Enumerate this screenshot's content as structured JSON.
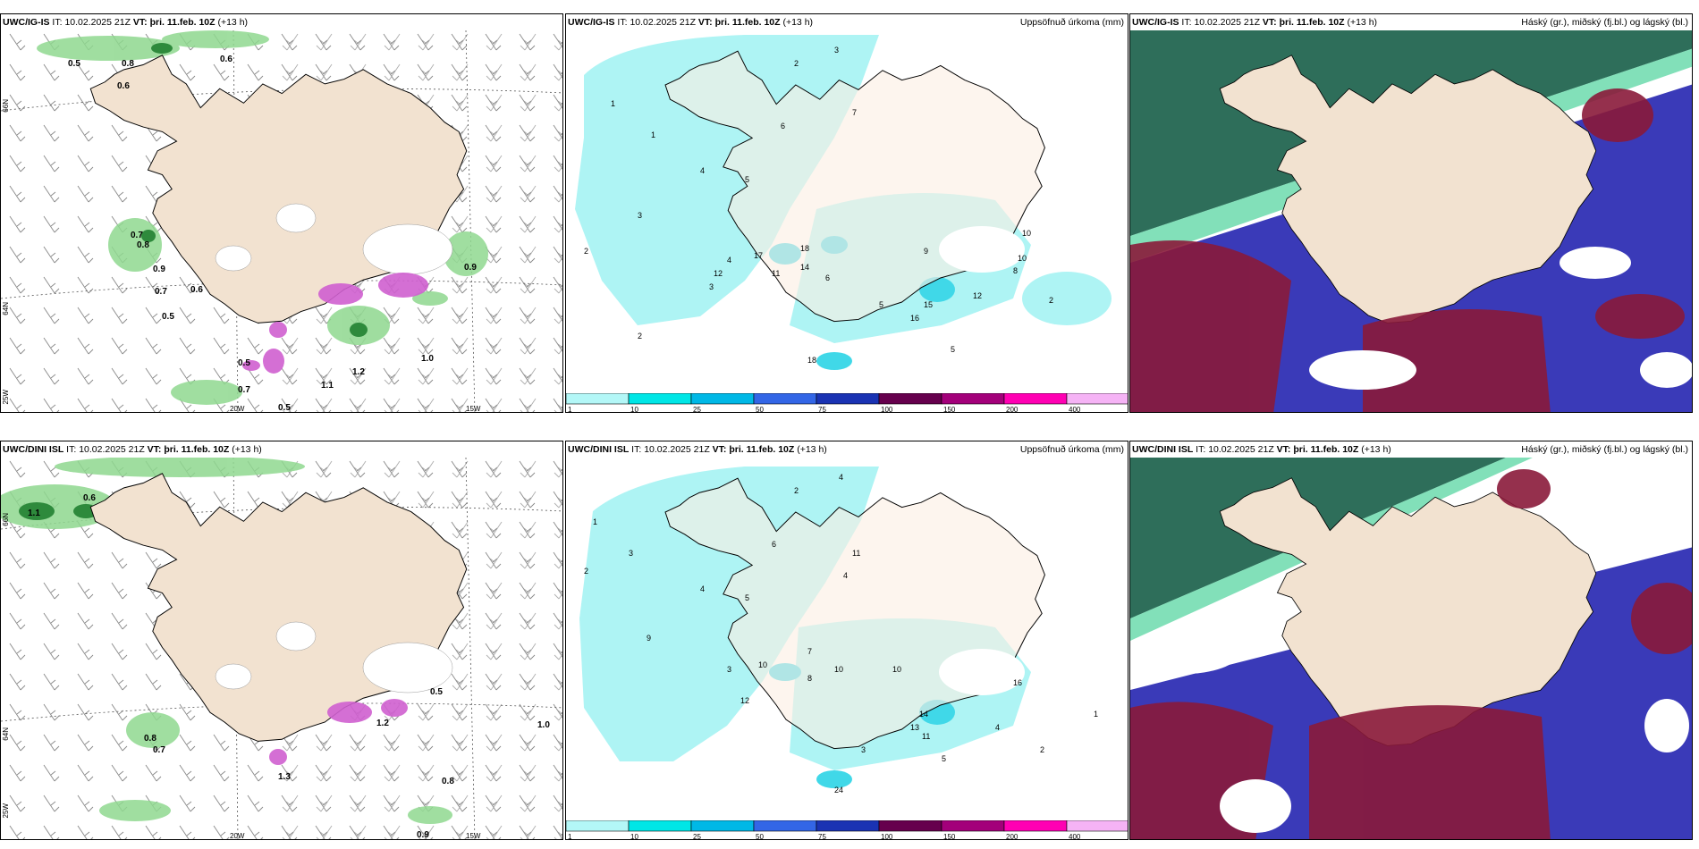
{
  "panels": [
    {
      "id": "tl",
      "model": "UWC/IG-IS",
      "it_label": "IT:",
      "it": "10.02.2025 21Z",
      "vt_label": "VT:",
      "vt": "þri. 11.feb. 10Z",
      "lead": "(+13 h)",
      "right": ""
    },
    {
      "id": "tm",
      "model": "UWC/IG-IS",
      "it_label": "IT:",
      "it": "10.02.2025 21Z",
      "vt_label": "VT:",
      "vt": "þri. 11.feb. 10Z",
      "lead": "(+13 h)",
      "right": "Uppsöfnuð úrkoma (mm)"
    },
    {
      "id": "tr",
      "model": "UWC/IG-IS",
      "it_label": "IT:",
      "it": "10.02.2025 21Z",
      "vt_label": "VT:",
      "vt": "þri. 11.feb. 10Z",
      "lead": "(+13 h)",
      "right": "Háský (gr.), miðský (fj.bl.) og lágský (bl.)"
    },
    {
      "id": "bl",
      "model": "UWC/DINI ISL",
      "it_label": "IT:",
      "it": "10.02.2025 21Z",
      "vt_label": "VT:",
      "vt": "þri. 11.feb. 10Z",
      "lead": "(+13 h)",
      "right": ""
    },
    {
      "id": "bm",
      "model": "UWC/DINI ISL",
      "it_label": "IT:",
      "it": "10.02.2025 21Z",
      "vt_label": "VT:",
      "vt": "þri. 11.feb. 10Z",
      "lead": "(+13 h)",
      "right": "Uppsöfnuð úrkoma (mm)"
    },
    {
      "id": "br",
      "model": "UWC/DINI ISL",
      "it_label": "IT:",
      "it": "10.02.2025 21Z",
      "vt_label": "VT:",
      "vt": "þri. 11.feb. 10Z",
      "lead": "(+13 h)",
      "right": "Háský (gr.), miðský (fj.bl.) og lágský (bl.)"
    }
  ],
  "axes": {
    "lat66": "66N",
    "lat64": "64N",
    "lon25": "25W",
    "lon20": "20W",
    "lon15": "15W"
  },
  "colorbar": {
    "ticks": [
      "1",
      "10",
      "25",
      "50",
      "75",
      "100",
      "150",
      "200",
      "400"
    ],
    "colors": [
      "#b3f7f7",
      "#00e6e6",
      "#00b8e6",
      "#3366e6",
      "#1a33b3",
      "#66004d",
      "#a3007a",
      "#ff00b3",
      "#f5b3f5"
    ]
  },
  "precip_tm": [
    "3",
    "2",
    "1",
    "1",
    "2",
    "3",
    "4",
    "5",
    "6",
    "7",
    "6",
    "5",
    "4",
    "3",
    "2",
    "17",
    "12",
    "11",
    "18",
    "14",
    "10",
    "8",
    "15",
    "16",
    "12",
    "18",
    "9",
    "10",
    "5",
    "2"
  ],
  "precip_bm": [
    "4",
    "2",
    "1",
    "2",
    "3",
    "4",
    "5",
    "6",
    "7",
    "11",
    "4",
    "3",
    "8",
    "10",
    "9",
    "24",
    "10",
    "12",
    "14",
    "13",
    "11",
    "16",
    "10",
    "5",
    "4",
    "3",
    "2",
    "1"
  ],
  "snow_tl": [
    "0.5",
    "0.8",
    "0.6",
    "0.6",
    "0.7",
    "0.8",
    "0.9",
    "0.7",
    "0.6",
    "0.5",
    "0.5",
    "1.0",
    "0.7",
    "0.5",
    "1.1",
    "1.2",
    "0.9"
  ],
  "snow_bl": [
    "0.6",
    "1.1",
    "0.8",
    "0.7",
    "1.0",
    "0.8",
    "1.3",
    "0.9",
    "0.5",
    "1.2"
  ],
  "map_colors": {
    "land": "#f5e6d6",
    "precip_light": "#aef4f4",
    "precip_mid": "#40d8e8",
    "snow_green": "#3aa84a",
    "snow_pink": "#d050c8",
    "high_cloud": "#1a6b4a",
    "mid_cloud": "#3a3ab8",
    "low_cloud": "#8a1a3a",
    "jet": "#2ecc8a"
  }
}
